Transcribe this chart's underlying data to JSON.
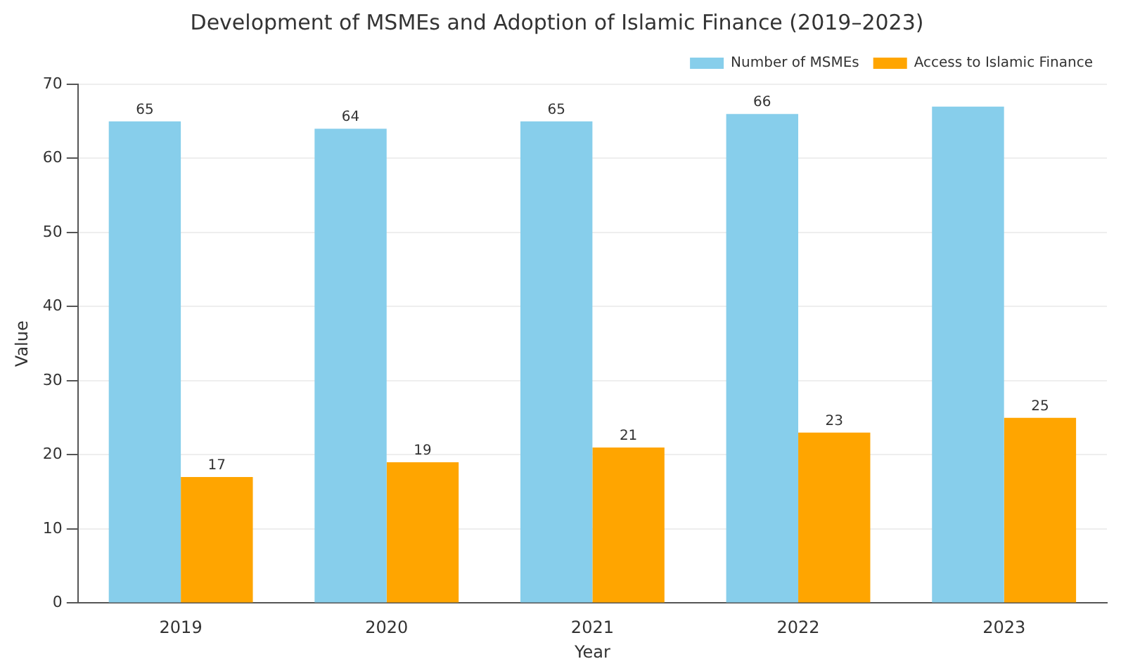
{
  "chart_data": {
    "type": "bar",
    "title": "Development of MSMEs and Adoption of Islamic Finance (2019–2023)",
    "xlabel": "Year",
    "ylabel": "Value",
    "categories": [
      "2019",
      "2020",
      "2021",
      "2022",
      "2023"
    ],
    "series": [
      {
        "name": "Number of MSMEs",
        "color": "#87ceeb",
        "values": [
          65,
          64,
          65,
          66,
          67
        ],
        "value_labels": [
          "65",
          "64",
          "65",
          "66",
          null
        ]
      },
      {
        "name": "Access to Islamic Finance",
        "color": "#ffa500",
        "values": [
          17,
          19,
          21,
          23,
          25
        ],
        "value_labels": [
          "17",
          "19",
          "21",
          "23",
          "25"
        ]
      }
    ],
    "ylim": [
      0,
      70
    ],
    "yticks": [
      0,
      10,
      20,
      30,
      40,
      50,
      60,
      70
    ],
    "grid": "y",
    "legend": "top right"
  }
}
